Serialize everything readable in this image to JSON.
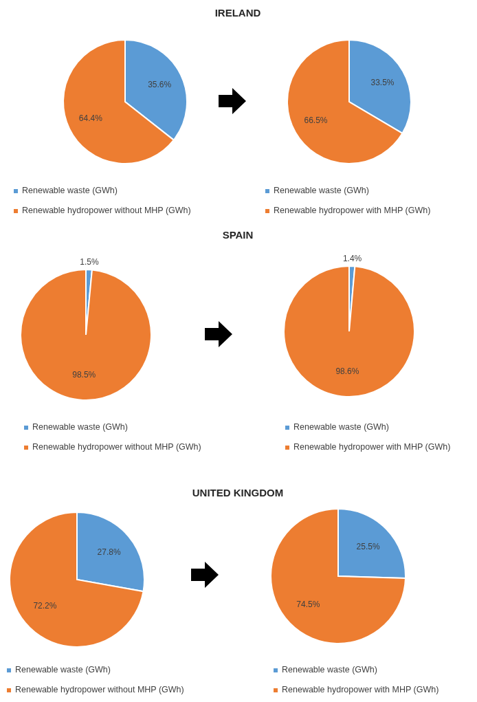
{
  "chart_data": [
    {
      "type": "pie",
      "title": "IRELAND",
      "categories": [
        "Renewable waste (GWh)",
        "Renewable hydropower without MHP (GWh)"
      ],
      "values": [
        35.6,
        64.4
      ],
      "colors": [
        "#5b9bd5",
        "#ed7d31"
      ],
      "value_labels": [
        "35.6%",
        "64.4%"
      ],
      "legend": "bottom"
    },
    {
      "type": "pie",
      "categories": [
        "Renewable waste (GWh)",
        "Renewable hydropower with MHP (GWh)"
      ],
      "values": [
        33.5,
        66.5
      ],
      "colors": [
        "#5b9bd5",
        "#ed7d31"
      ],
      "value_labels": [
        "33.5%",
        "66.5%"
      ],
      "legend": "bottom"
    },
    {
      "type": "pie",
      "title": "SPAIN",
      "categories": [
        "Renewable waste (GWh)",
        "Renewable hydropower without MHP (GWh)"
      ],
      "values": [
        1.5,
        98.5
      ],
      "colors": [
        "#5b9bd5",
        "#ed7d31"
      ],
      "value_labels": [
        "1.5%",
        "98.5%"
      ],
      "legend": "bottom"
    },
    {
      "type": "pie",
      "categories": [
        "Renewable waste (GWh)",
        "Renewable hydropower with MHP (GWh)"
      ],
      "values": [
        1.4,
        98.6
      ],
      "colors": [
        "#5b9bd5",
        "#ed7d31"
      ],
      "value_labels": [
        "1.4%",
        "98.6%"
      ],
      "legend": "bottom"
    },
    {
      "type": "pie",
      "title": "UNITED KINGDOM",
      "categories": [
        "Renewable waste (GWh)",
        "Renewable hydropower without MHP (GWh)"
      ],
      "values": [
        27.8,
        72.2
      ],
      "colors": [
        "#5b9bd5",
        "#ed7d31"
      ],
      "value_labels": [
        "27.8%",
        "72.2%"
      ],
      "legend": "bottom"
    },
    {
      "type": "pie",
      "categories": [
        "Renewable waste (GWh)",
        "Renewable hydropower with MHP (GWh)"
      ],
      "values": [
        25.5,
        74.5
      ],
      "colors": [
        "#5b9bd5",
        "#ed7d31"
      ],
      "value_labels": [
        "25.5%",
        "74.5%"
      ],
      "legend": "bottom"
    }
  ]
}
